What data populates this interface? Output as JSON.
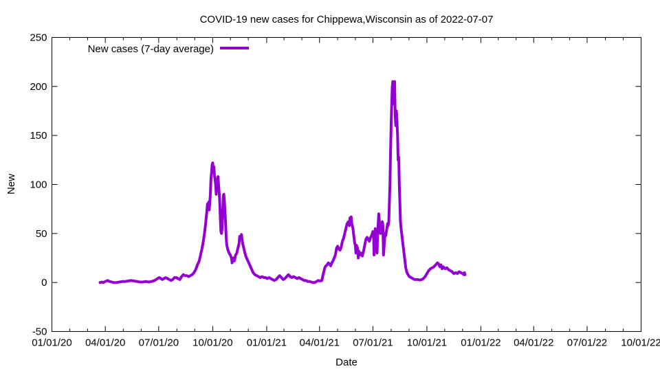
{
  "chart_data": {
    "type": "line",
    "title": "COVID-19 new cases for Chippewa,Wisconsin as of 2022-07-07",
    "xlabel": "Date",
    "ylabel": "New",
    "ylim": [
      -50,
      250
    ],
    "yticks": [
      -50,
      0,
      50,
      100,
      150,
      200,
      250
    ],
    "xticks": [
      "01/01/20",
      "04/01/20",
      "07/01/20",
      "10/01/20",
      "01/01/21",
      "04/01/21",
      "07/01/21",
      "10/01/21",
      "01/01/22",
      "04/01/22",
      "07/01/22",
      "10/01/22"
    ],
    "xlim_days": [
      0,
      1004
    ],
    "xtick_days": [
      0,
      91,
      182,
      274,
      366,
      456,
      547,
      639,
      731,
      821,
      912,
      1004
    ],
    "legend": {
      "label": "New cases (7-day average)",
      "position": "top-left"
    },
    "series": [
      {
        "name": "New cases (7-day average)",
        "color": "#9400d3",
        "points": [
          [
            82,
            0
          ],
          [
            85,
            0.5
          ],
          [
            88,
            0
          ],
          [
            91,
            1
          ],
          [
            95,
            2
          ],
          [
            98,
            1
          ],
          [
            102,
            0.5
          ],
          [
            105,
            0
          ],
          [
            110,
            0
          ],
          [
            115,
            0.5
          ],
          [
            120,
            1
          ],
          [
            125,
            1
          ],
          [
            130,
            1.5
          ],
          [
            135,
            2
          ],
          [
            140,
            1.5
          ],
          [
            145,
            1
          ],
          [
            150,
            0.5
          ],
          [
            155,
            0.5
          ],
          [
            160,
            1
          ],
          [
            165,
            0.5
          ],
          [
            170,
            1
          ],
          [
            175,
            2
          ],
          [
            180,
            4
          ],
          [
            183,
            5
          ],
          [
            186,
            4
          ],
          [
            188,
            3
          ],
          [
            191,
            4
          ],
          [
            194,
            5
          ],
          [
            197,
            4
          ],
          [
            200,
            3
          ],
          [
            203,
            2
          ],
          [
            206,
            3
          ],
          [
            209,
            5
          ],
          [
            212,
            5
          ],
          [
            215,
            4
          ],
          [
            218,
            3
          ],
          [
            221,
            6
          ],
          [
            224,
            8
          ],
          [
            227,
            7
          ],
          [
            230,
            7
          ],
          [
            233,
            6
          ],
          [
            236,
            7
          ],
          [
            239,
            8
          ],
          [
            242,
            10
          ],
          [
            245,
            13
          ],
          [
            248,
            18
          ],
          [
            251,
            22
          ],
          [
            254,
            30
          ],
          [
            256,
            35
          ],
          [
            258,
            42
          ],
          [
            260,
            50
          ],
          [
            262,
            60
          ],
          [
            264,
            72
          ],
          [
            265,
            80
          ],
          [
            266,
            75
          ],
          [
            267,
            82
          ],
          [
            268,
            74
          ],
          [
            270,
            90
          ],
          [
            271,
            105
          ],
          [
            272,
            112
          ],
          [
            273,
            120
          ],
          [
            274,
            122
          ],
          [
            275,
            112
          ],
          [
            276,
            118
          ],
          [
            277,
            110
          ],
          [
            279,
            100
          ],
          [
            280,
            90
          ],
          [
            281,
            102
          ],
          [
            283,
            108
          ],
          [
            284,
            100
          ],
          [
            285,
            92
          ],
          [
            286,
            82
          ],
          [
            287,
            65
          ],
          [
            288,
            52
          ],
          [
            289,
            50
          ],
          [
            290,
            55
          ],
          [
            291,
            70
          ],
          [
            292,
            88
          ],
          [
            293,
            90
          ],
          [
            294,
            82
          ],
          [
            295,
            72
          ],
          [
            296,
            60
          ],
          [
            297,
            45
          ],
          [
            298,
            38
          ],
          [
            300,
            33
          ],
          [
            302,
            30
          ],
          [
            304,
            28
          ],
          [
            306,
            25
          ],
          [
            307,
            20
          ],
          [
            309,
            25
          ],
          [
            311,
            22
          ],
          [
            313,
            28
          ],
          [
            315,
            30
          ],
          [
            317,
            35
          ],
          [
            319,
            40
          ],
          [
            320,
            47
          ],
          [
            322,
            45
          ],
          [
            323,
            49
          ],
          [
            324,
            44
          ],
          [
            325,
            40
          ],
          [
            327,
            35
          ],
          [
            329,
            30
          ],
          [
            331,
            26
          ],
          [
            334,
            22
          ],
          [
            337,
            18
          ],
          [
            340,
            14
          ],
          [
            343,
            10
          ],
          [
            346,
            8
          ],
          [
            349,
            7
          ],
          [
            352,
            6
          ],
          [
            355,
            5
          ],
          [
            358,
            6
          ],
          [
            361,
            5
          ],
          [
            364,
            5
          ],
          [
            367,
            4
          ],
          [
            370,
            5
          ],
          [
            373,
            4
          ],
          [
            376,
            3
          ],
          [
            379,
            2
          ],
          [
            382,
            3
          ],
          [
            385,
            5
          ],
          [
            388,
            7
          ],
          [
            391,
            5
          ],
          [
            394,
            3
          ],
          [
            397,
            4
          ],
          [
            400,
            6
          ],
          [
            403,
            8
          ],
          [
            406,
            6
          ],
          [
            409,
            5
          ],
          [
            412,
            6
          ],
          [
            415,
            5
          ],
          [
            418,
            4
          ],
          [
            421,
            5
          ],
          [
            424,
            4
          ],
          [
            427,
            3
          ],
          [
            430,
            2
          ],
          [
            433,
            2
          ],
          [
            436,
            1
          ],
          [
            439,
            1
          ],
          [
            442,
            0.5
          ],
          [
            445,
            0
          ],
          [
            448,
            0
          ],
          [
            451,
            1
          ],
          [
            454,
            2
          ],
          [
            457,
            1.5
          ],
          [
            460,
            2
          ],
          [
            461,
            5
          ],
          [
            463,
            10
          ],
          [
            465,
            15
          ],
          [
            467,
            17
          ],
          [
            469,
            18
          ],
          [
            471,
            20
          ],
          [
            473,
            19
          ],
          [
            475,
            17
          ],
          [
            477,
            20
          ],
          [
            479,
            22
          ],
          [
            481,
            25
          ],
          [
            483,
            28
          ],
          [
            485,
            35
          ],
          [
            487,
            37
          ],
          [
            489,
            34
          ],
          [
            491,
            33
          ],
          [
            493,
            36
          ],
          [
            495,
            42
          ],
          [
            497,
            45
          ],
          [
            499,
            50
          ],
          [
            501,
            55
          ],
          [
            503,
            60
          ],
          [
            505,
            62
          ],
          [
            507,
            58
          ],
          [
            508,
            66
          ],
          [
            509,
            64
          ],
          [
            510,
            67
          ],
          [
            511,
            60
          ],
          [
            513,
            55
          ],
          [
            514,
            50
          ],
          [
            515,
            45
          ],
          [
            516,
            40
          ],
          [
            517,
            38
          ],
          [
            518,
            30
          ],
          [
            519,
            38
          ],
          [
            521,
            35
          ],
          [
            522,
            25
          ],
          [
            523,
            32
          ],
          [
            525,
            28
          ],
          [
            527,
            30
          ],
          [
            529,
            27
          ],
          [
            531,
            32
          ],
          [
            533,
            38
          ],
          [
            535,
            44
          ],
          [
            537,
            46
          ],
          [
            539,
            44
          ],
          [
            541,
            42
          ],
          [
            543,
            46
          ],
          [
            545,
            48
          ],
          [
            547,
            52
          ],
          [
            548,
            50
          ],
          [
            549,
            28
          ],
          [
            550,
            44
          ],
          [
            551,
            55
          ],
          [
            552,
            50
          ],
          [
            553,
            42
          ],
          [
            554,
            30
          ],
          [
            555,
            45
          ],
          [
            556,
            60
          ],
          [
            557,
            70
          ],
          [
            558,
            62
          ],
          [
            559,
            55
          ],
          [
            560,
            50
          ],
          [
            561,
            58
          ],
          [
            562,
            60
          ],
          [
            563,
            62
          ],
          [
            564,
            58
          ],
          [
            565,
            28
          ],
          [
            566,
            35
          ],
          [
            567,
            45
          ],
          [
            568,
            50
          ],
          [
            569,
            48
          ],
          [
            570,
            52
          ],
          [
            571,
            56
          ],
          [
            572,
            60
          ],
          [
            573,
            58
          ],
          [
            574,
            62
          ],
          [
            575,
            80
          ],
          [
            576,
            100
          ],
          [
            577,
            130
          ],
          [
            578,
            160
          ],
          [
            579,
            180
          ],
          [
            580,
            200
          ],
          [
            581,
            205
          ],
          [
            582,
            190
          ],
          [
            583,
            182
          ],
          [
            584,
            205
          ],
          [
            585,
            170
          ],
          [
            586,
            160
          ],
          [
            587,
            175
          ],
          [
            588,
            165
          ],
          [
            589,
            150
          ],
          [
            590,
            125
          ],
          [
            591,
            128
          ],
          [
            592,
            100
          ],
          [
            593,
            80
          ],
          [
            594,
            62
          ],
          [
            595,
            55
          ],
          [
            597,
            45
          ],
          [
            599,
            35
          ],
          [
            601,
            25
          ],
          [
            603,
            15
          ],
          [
            605,
            10
          ],
          [
            607,
            8
          ],
          [
            609,
            6
          ],
          [
            612,
            5
          ],
          [
            615,
            4
          ],
          [
            618,
            3
          ],
          [
            621,
            3
          ],
          [
            624,
            3
          ],
          [
            627,
            2.5
          ],
          [
            630,
            3
          ],
          [
            633,
            4
          ],
          [
            636,
            6
          ],
          [
            639,
            9
          ],
          [
            642,
            12
          ],
          [
            645,
            14
          ],
          [
            648,
            15
          ],
          [
            651,
            16
          ],
          [
            654,
            18
          ],
          [
            657,
            20
          ],
          [
            659,
            19
          ],
          [
            661,
            16
          ],
          [
            663,
            18
          ],
          [
            665,
            14
          ],
          [
            667,
            16
          ],
          [
            670,
            14
          ],
          [
            673,
            15
          ],
          [
            676,
            13
          ],
          [
            679,
            12
          ],
          [
            682,
            11
          ],
          [
            685,
            9
          ],
          [
            688,
            10
          ],
          [
            691,
            9
          ],
          [
            694,
            11
          ],
          [
            697,
            10
          ],
          [
            700,
            9
          ],
          [
            702,
            8
          ],
          [
            703,
            10
          ],
          [
            704,
            8
          ]
        ]
      }
    ]
  }
}
